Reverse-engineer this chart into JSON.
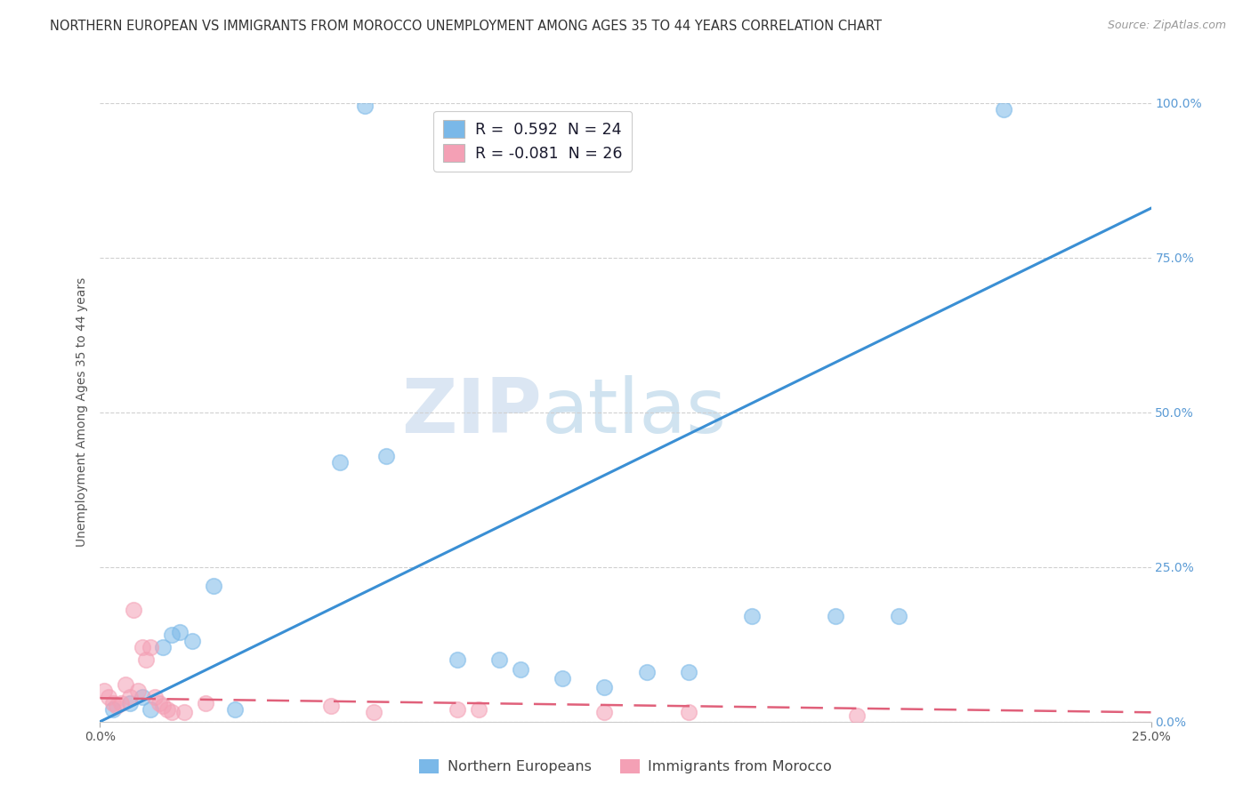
{
  "title": "NORTHERN EUROPEAN VS IMMIGRANTS FROM MOROCCO UNEMPLOYMENT AMONG AGES 35 TO 44 YEARS CORRELATION CHART",
  "source": "Source: ZipAtlas.com",
  "ylabel": "Unemployment Among Ages 35 to 44 years",
  "xlim": [
    0,
    0.25
  ],
  "ylim": [
    0,
    1.0
  ],
  "legend_labels": [
    "Northern Europeans",
    "Immigrants from Morocco"
  ],
  "blue_color": "#7ab8e8",
  "pink_color": "#f4a0b5",
  "blue_scatter": [
    [
      0.003,
      0.02
    ],
    [
      0.007,
      0.03
    ],
    [
      0.01,
      0.04
    ],
    [
      0.012,
      0.02
    ],
    [
      0.015,
      0.12
    ],
    [
      0.017,
      0.14
    ],
    [
      0.019,
      0.145
    ],
    [
      0.022,
      0.13
    ],
    [
      0.027,
      0.22
    ],
    [
      0.032,
      0.02
    ],
    [
      0.057,
      0.42
    ],
    [
      0.068,
      0.43
    ],
    [
      0.085,
      0.1
    ],
    [
      0.095,
      0.1
    ],
    [
      0.1,
      0.085
    ],
    [
      0.11,
      0.07
    ],
    [
      0.12,
      0.055
    ],
    [
      0.13,
      0.08
    ],
    [
      0.14,
      0.08
    ],
    [
      0.155,
      0.17
    ],
    [
      0.175,
      0.17
    ],
    [
      0.19,
      0.17
    ],
    [
      0.063,
      0.995
    ],
    [
      0.215,
      0.99
    ]
  ],
  "pink_scatter": [
    [
      0.001,
      0.05
    ],
    [
      0.002,
      0.04
    ],
    [
      0.003,
      0.03
    ],
    [
      0.004,
      0.025
    ],
    [
      0.005,
      0.03
    ],
    [
      0.006,
      0.06
    ],
    [
      0.007,
      0.04
    ],
    [
      0.008,
      0.18
    ],
    [
      0.009,
      0.05
    ],
    [
      0.01,
      0.12
    ],
    [
      0.011,
      0.1
    ],
    [
      0.012,
      0.12
    ],
    [
      0.013,
      0.04
    ],
    [
      0.014,
      0.03
    ],
    [
      0.015,
      0.025
    ],
    [
      0.016,
      0.02
    ],
    [
      0.017,
      0.015
    ],
    [
      0.02,
      0.015
    ],
    [
      0.025,
      0.03
    ],
    [
      0.055,
      0.025
    ],
    [
      0.065,
      0.015
    ],
    [
      0.085,
      0.02
    ],
    [
      0.09,
      0.02
    ],
    [
      0.12,
      0.015
    ],
    [
      0.14,
      0.015
    ],
    [
      0.18,
      0.01
    ]
  ],
  "blue_line_x": [
    0.0,
    0.25
  ],
  "blue_line_y": [
    0.0,
    0.83
  ],
  "pink_line_x": [
    0.0,
    0.25
  ],
  "pink_line_y": [
    0.038,
    0.015
  ],
  "watermark_zip": "ZIP",
  "watermark_atlas": "atlas",
  "grid_color": "#d0d0d0",
  "background_color": "#ffffff",
  "title_fontsize": 10.5,
  "source_fontsize": 9,
  "axis_label_fontsize": 10,
  "tick_fontsize": 10,
  "right_tick_color": "#5b9bd5",
  "legend_r1": "R =  0.592  N = 24",
  "legend_r2": "R = -0.081  N = 26"
}
